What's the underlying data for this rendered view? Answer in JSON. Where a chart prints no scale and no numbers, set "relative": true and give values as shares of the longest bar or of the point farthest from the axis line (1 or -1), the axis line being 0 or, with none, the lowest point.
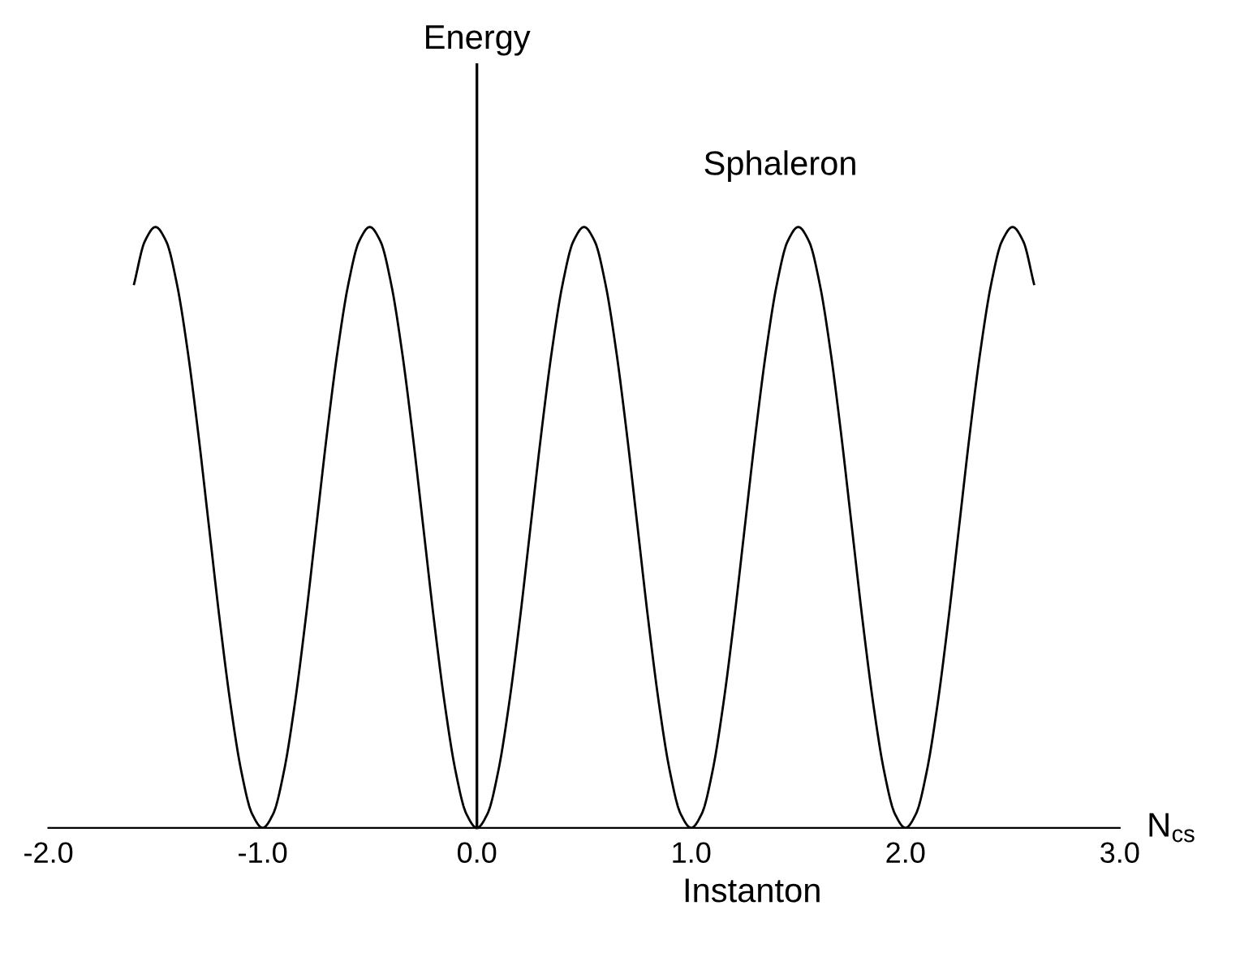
{
  "chart_data": {
    "type": "line",
    "relative": true,
    "xlabel": "N$_{cs}$",
    "xlim": [
      -2.0,
      3.0
    ],
    "xticks": [
      {
        "value": -2,
        "label": "-2.0"
      },
      {
        "value": -1,
        "label": "-1.0"
      },
      {
        "value": 0,
        "label": "0.0"
      },
      {
        "value": 1,
        "label": "1.0"
      },
      {
        "value": 2,
        "label": "2.0"
      },
      {
        "value": 3,
        "label": "3.0"
      }
    ],
    "tick_labels": "x",
    "annotations": [
      "Energy",
      {
        "text": "Sphaleron",
        "x": 1.5,
        "y": 1
      },
      {
        "text": "Instanton",
        "x": 1.0,
        "y": 0
      }
    ],
    "series": [
      {
        "color": "#000000",
        "x": [
          -1.6,
          -1.55,
          -1.5,
          -1.45,
          -1.4,
          -1.35,
          -1.3,
          -1.25,
          -1.2,
          -1.15,
          -1.1,
          -1.05,
          -1.0,
          -0.95,
          -0.9,
          -0.85,
          -0.8,
          -0.75,
          -0.7,
          -0.65,
          -0.6,
          -0.55,
          -0.5,
          -0.45,
          -0.4,
          -0.35,
          -0.3,
          -0.25,
          -0.2,
          -0.15,
          -0.1,
          -0.05,
          0.0,
          0.05,
          0.1,
          0.15,
          0.2,
          0.25,
          0.3,
          0.35,
          0.4,
          0.45,
          0.5,
          0.55,
          0.6,
          0.65,
          0.7,
          0.75,
          0.8,
          0.85,
          0.9,
          0.95,
          1.0,
          1.05,
          1.1,
          1.15,
          1.2,
          1.25,
          1.3,
          1.35,
          1.4,
          1.45,
          1.5,
          1.55,
          1.6,
          1.65,
          1.7,
          1.75,
          1.8,
          1.85,
          1.9,
          1.95,
          2.0,
          2.05,
          2.1,
          2.15,
          2.2,
          2.25,
          2.3,
          2.35,
          2.4,
          2.45,
          2.5,
          2.55,
          2.6
        ],
        "values": [
          0.905,
          0.976,
          1,
          0.976,
          0.905,
          0.794,
          0.655,
          0.5,
          0.345,
          0.206,
          0.095,
          0.024,
          0,
          0.024,
          0.095,
          0.206,
          0.345,
          0.5,
          0.655,
          0.794,
          0.905,
          0.976,
          1,
          0.976,
          0.905,
          0.794,
          0.655,
          0.5,
          0.345,
          0.206,
          0.095,
          0.024,
          0,
          0.024,
          0.095,
          0.206,
          0.345,
          0.5,
          0.655,
          0.794,
          0.905,
          0.976,
          1,
          0.976,
          0.905,
          0.794,
          0.655,
          0.5,
          0.345,
          0.206,
          0.095,
          0.024,
          0,
          0.024,
          0.095,
          0.206,
          0.345,
          0.5,
          0.655,
          0.794,
          0.905,
          0.976,
          1,
          0.976,
          0.905,
          0.794,
          0.655,
          0.5,
          0.345,
          0.206,
          0.095,
          0.024,
          0,
          0.024,
          0.095,
          0.206,
          0.345,
          0.5,
          0.655,
          0.794,
          0.905,
          0.976,
          1,
          0.976,
          0.905
        ]
      }
    ]
  }
}
